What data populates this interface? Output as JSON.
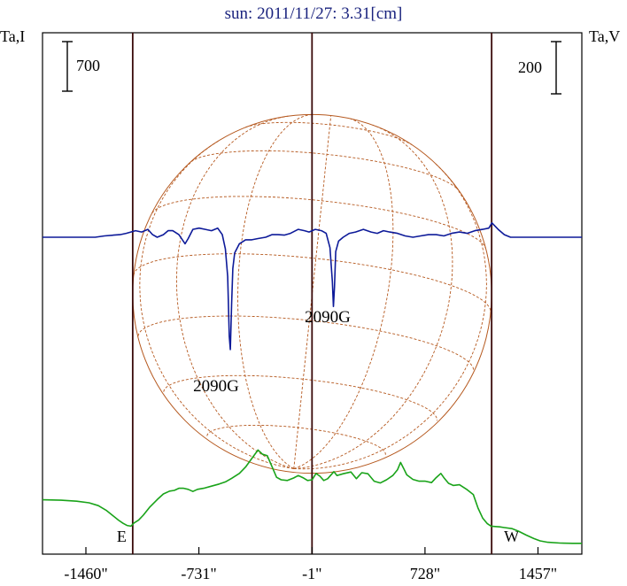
{
  "chart_data": {
    "type": "line",
    "title": "sun: 2011/11/27: 3.31[cm]",
    "left_axis_label": "Ta,I",
    "right_axis_label": "Ta,V",
    "left_scale_bar_label": "700",
    "right_scale_bar_label": "200",
    "x_axis": {
      "unit": "arcsec",
      "range": [
        -1740,
        1740
      ],
      "ticks": [
        {
          "value": -1460,
          "label": "-1460\""
        },
        {
          "value": -731,
          "label": "-731\""
        },
        {
          "value": -1,
          "label": "-1\""
        },
        {
          "value": 728,
          "label": "728\""
        },
        {
          "value": 1457,
          "label": "1457\""
        }
      ]
    },
    "limb_markers": [
      {
        "label": "E",
        "x": -1158
      },
      {
        "label": "W",
        "x": 1158
      }
    ],
    "center_marker_x": -1,
    "solar_radius_arcsec": 1158,
    "series": [
      {
        "name": "Ta,I",
        "color": "#19a319",
        "points": [
          [
            -1740,
            618
          ],
          [
            -1620,
            611
          ],
          [
            -1520,
            598
          ],
          [
            -1440,
            575
          ],
          [
            -1380,
            535
          ],
          [
            -1330,
            470
          ],
          [
            -1290,
            400
          ],
          [
            -1250,
            330
          ],
          [
            -1220,
            285
          ],
          [
            -1195,
            255
          ],
          [
            -1170,
            245
          ],
          [
            -1150,
            290
          ],
          [
            -1120,
            330
          ],
          [
            -1090,
            400
          ],
          [
            -1050,
            510
          ],
          [
            -1000,
            620
          ],
          [
            -960,
            700
          ],
          [
            -920,
            740
          ],
          [
            -890,
            750
          ],
          [
            -860,
            780
          ],
          [
            -830,
            780
          ],
          [
            -800,
            765
          ],
          [
            -770,
            735
          ],
          [
            -740,
            765
          ],
          [
            -700,
            780
          ],
          [
            -650,
            810
          ],
          [
            -600,
            840
          ],
          [
            -560,
            870
          ],
          [
            -520,
            920
          ],
          [
            -470,
            990
          ],
          [
            -430,
            1080
          ],
          [
            -390,
            1200
          ],
          [
            -350,
            1320
          ],
          [
            -320,
            1260
          ],
          [
            -290,
            1240
          ],
          [
            -260,
            1090
          ],
          [
            -230,
            935
          ],
          [
            -200,
            900
          ],
          [
            -160,
            890
          ],
          [
            -120,
            925
          ],
          [
            -90,
            960
          ],
          [
            -60,
            930
          ],
          [
            -30,
            890
          ],
          [
            0,
            900
          ],
          [
            25,
            990
          ],
          [
            50,
            950
          ],
          [
            75,
            890
          ],
          [
            100,
            915
          ],
          [
            140,
            1015
          ],
          [
            160,
            960
          ],
          [
            200,
            985
          ],
          [
            250,
            1010
          ],
          [
            285,
            915
          ],
          [
            320,
            1000
          ],
          [
            360,
            985
          ],
          [
            400,
            880
          ],
          [
            440,
            855
          ],
          [
            480,
            900
          ],
          [
            520,
            960
          ],
          [
            550,
            1040
          ],
          [
            570,
            1145
          ],
          [
            590,
            1060
          ],
          [
            610,
            970
          ],
          [
            650,
            905
          ],
          [
            690,
            880
          ],
          [
            730,
            880
          ],
          [
            770,
            860
          ],
          [
            800,
            930
          ],
          [
            830,
            990
          ],
          [
            850,
            930
          ],
          [
            880,
            850
          ],
          [
            910,
            820
          ],
          [
            950,
            830
          ],
          [
            1000,
            760
          ],
          [
            1040,
            690
          ],
          [
            1070,
            500
          ],
          [
            1100,
            360
          ],
          [
            1130,
            280
          ],
          [
            1155,
            245
          ],
          [
            1180,
            240
          ],
          [
            1210,
            235
          ],
          [
            1240,
            225
          ],
          [
            1290,
            210
          ],
          [
            1330,
            175
          ],
          [
            1380,
            120
          ],
          [
            1430,
            70
          ],
          [
            1470,
            38
          ],
          [
            1520,
            18
          ],
          [
            1600,
            6
          ],
          [
            1680,
            3
          ],
          [
            1740,
            2
          ]
        ]
      },
      {
        "name": "Ta,V",
        "color": "#0d1a99",
        "points": [
          [
            -1740,
            0
          ],
          [
            -1400,
            0
          ],
          [
            -1340,
            5
          ],
          [
            -1280,
            8
          ],
          [
            -1240,
            10
          ],
          [
            -1200,
            15
          ],
          [
            -1140,
            25
          ],
          [
            -1100,
            20
          ],
          [
            -1060,
            30
          ],
          [
            -1030,
            10
          ],
          [
            -1000,
            0
          ],
          [
            -960,
            10
          ],
          [
            -930,
            25
          ],
          [
            -900,
            25
          ],
          [
            -860,
            10
          ],
          [
            -820,
            -25
          ],
          [
            -800,
            -5
          ],
          [
            -770,
            30
          ],
          [
            -730,
            35
          ],
          [
            -690,
            30
          ],
          [
            -650,
            25
          ],
          [
            -610,
            35
          ],
          [
            -580,
            10
          ],
          [
            -560,
            -45
          ],
          [
            -545,
            -150
          ],
          [
            -535,
            -380
          ],
          [
            -528,
            -430
          ],
          [
            -520,
            -260
          ],
          [
            -512,
            -120
          ],
          [
            -500,
            -60
          ],
          [
            -470,
            -25
          ],
          [
            -430,
            -10
          ],
          [
            -390,
            -10
          ],
          [
            -350,
            -5
          ],
          [
            -300,
            0
          ],
          [
            -260,
            10
          ],
          [
            -220,
            10
          ],
          [
            -180,
            8
          ],
          [
            -140,
            15
          ],
          [
            -90,
            30
          ],
          [
            -50,
            25
          ],
          [
            -20,
            20
          ],
          [
            20,
            30
          ],
          [
            60,
            25
          ],
          [
            90,
            15
          ],
          [
            115,
            -40
          ],
          [
            130,
            -170
          ],
          [
            137,
            -265
          ],
          [
            144,
            -190
          ],
          [
            152,
            -55
          ],
          [
            170,
            -15
          ],
          [
            200,
            0
          ],
          [
            240,
            15
          ],
          [
            280,
            20
          ],
          [
            330,
            30
          ],
          [
            380,
            20
          ],
          [
            420,
            15
          ],
          [
            460,
            25
          ],
          [
            500,
            20
          ],
          [
            550,
            15
          ],
          [
            600,
            5
          ],
          [
            650,
            0
          ],
          [
            700,
            5
          ],
          [
            750,
            10
          ],
          [
            800,
            10
          ],
          [
            850,
            5
          ],
          [
            900,
            15
          ],
          [
            950,
            20
          ],
          [
            1000,
            15
          ],
          [
            1050,
            25
          ],
          [
            1100,
            30
          ],
          [
            1140,
            35
          ],
          [
            1160,
            55
          ],
          [
            1200,
            30
          ],
          [
            1240,
            10
          ],
          [
            1280,
            0
          ],
          [
            1330,
            0
          ],
          [
            1740,
            0
          ]
        ]
      }
    ],
    "annotations": [
      {
        "text": "2090G",
        "x": -620,
        "y": -590
      },
      {
        "text": "2090G",
        "x": 100,
        "y": -325
      }
    ]
  }
}
